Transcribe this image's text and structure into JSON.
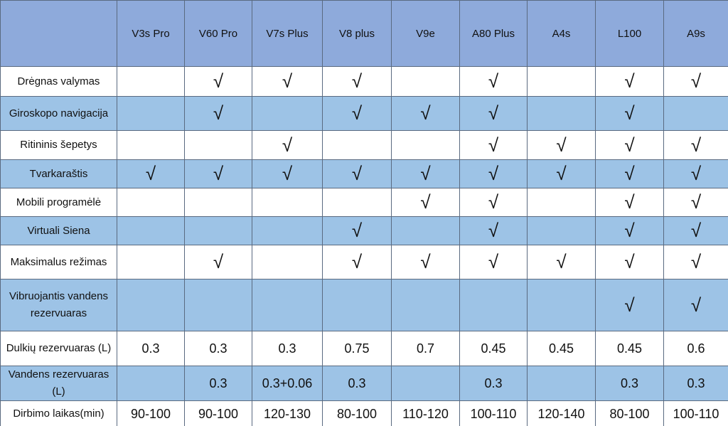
{
  "table": {
    "columns": [
      "V3s Pro",
      "V60 Pro",
      "V7s Plus",
      "V8 plus",
      "V9e",
      "A80 Plus",
      "A4s",
      "L100",
      "A9s"
    ],
    "rows": [
      {
        "label": "Drėgnas valymas",
        "cells": [
          null,
          "√",
          "√",
          "√",
          null,
          "√",
          null,
          "√",
          "√"
        ]
      },
      {
        "label": "Giroskopo navigacija",
        "cells": [
          null,
          "√",
          null,
          "√",
          "√",
          "√",
          null,
          "√",
          null
        ]
      },
      {
        "label": "Ritininis šepetys",
        "cells": [
          null,
          null,
          "√",
          null,
          null,
          "√",
          "√",
          "√",
          "√"
        ]
      },
      {
        "label": "Tvarkaraštis",
        "cells": [
          "√",
          "√",
          "√",
          "√",
          "√",
          "√",
          "√",
          "√",
          "√"
        ]
      },
      {
        "label": "Mobili programėlė",
        "cells": [
          null,
          null,
          null,
          null,
          "√",
          "√",
          null,
          "√",
          "√"
        ]
      },
      {
        "label": "Virtuali Siena",
        "cells": [
          null,
          null,
          null,
          "√",
          null,
          "√",
          null,
          "√",
          "√"
        ]
      },
      {
        "label": "Maksimalus režimas",
        "cells": [
          null,
          "√",
          null,
          "√",
          "√",
          "√",
          "√",
          "√",
          "√"
        ]
      },
      {
        "label": "Vibruojantis vandens rezervuaras",
        "cells": [
          null,
          null,
          null,
          null,
          null,
          null,
          null,
          "√",
          "√"
        ]
      },
      {
        "label": "Dulkių rezervuaras (L)",
        "cells": [
          "0.3",
          "0.3",
          "0.3",
          "0.75",
          "0.7",
          "0.45",
          "0.45",
          "0.45",
          "0.6"
        ]
      },
      {
        "label": "Vandens rezervuaras (L)",
        "cells": [
          null,
          "0.3",
          "0.3+0.06",
          "0.3",
          null,
          "0.3",
          null,
          "0.3",
          "0.3"
        ]
      },
      {
        "label": "Dirbimo laikas(min)",
        "cells": [
          "90-100",
          "90-100",
          "120-130",
          "80-100",
          "110-120",
          "100-110",
          "120-140",
          "80-100",
          "100-110"
        ]
      }
    ]
  }
}
